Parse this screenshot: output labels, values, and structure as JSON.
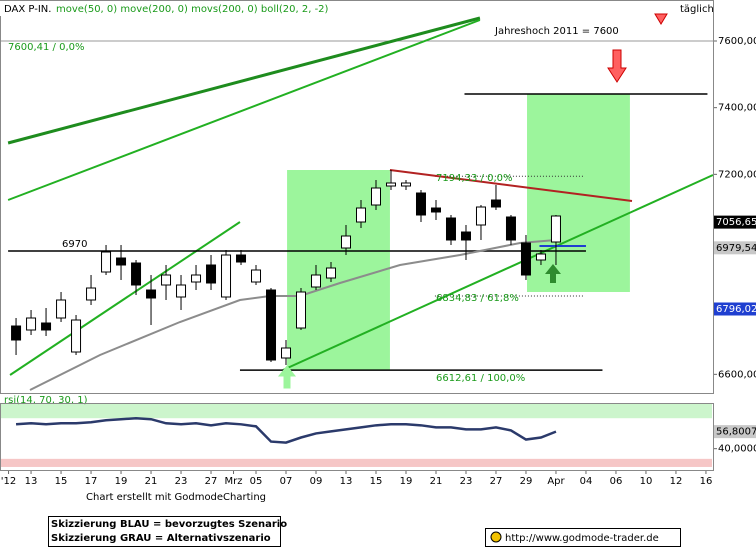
{
  "header": {
    "symbol": "DAX P-IN.",
    "indicators": "move(50, 0) move(200, 0) movs(200, 0) boll(20, 2, -2)",
    "period": "täglich"
  },
  "chart_data": [
    {
      "type": "candlestick",
      "xlim": [
        -1.07,
        46.47
      ],
      "ylim": [
        6544,
        7717
      ],
      "yticks": [
        {
          "value": 7600,
          "label": "7600,00"
        },
        {
          "value": 7400,
          "label": "7400,00"
        },
        {
          "value": 7200,
          "label": "7200,00"
        },
        {
          "value": 6600,
          "label": "6600,00"
        }
      ],
      "up_color": "#ffffff",
      "down_color": "#000000",
      "open": [
        6745,
        6733,
        6754,
        6769,
        6667,
        6823,
        6907,
        6949,
        6934,
        6853,
        6868,
        6832,
        6877,
        6928,
        6832,
        6958,
        6877,
        6853,
        6649,
        6739,
        6862,
        6889,
        6979,
        7057,
        7108,
        7165,
        7165,
        7144,
        7099,
        7069,
        7027,
        7048,
        7123,
        7072,
        6994,
        6943,
        6997
      ],
      "high": [
        6769,
        6793,
        6799,
        6847,
        6778,
        6898,
        6988,
        6988,
        6943,
        6898,
        6928,
        6898,
        6928,
        6958,
        6973,
        6973,
        6928,
        6859,
        6703,
        6859,
        6928,
        6937,
        7048,
        7123,
        7183,
        7213,
        7183,
        7153,
        7123,
        7078,
        7048,
        7108,
        7168,
        7078,
        7018,
        6973,
        7078
      ],
      "low": [
        6658,
        6718,
        6715,
        6757,
        6658,
        6808,
        6898,
        6883,
        6838,
        6748,
        6823,
        6793,
        6853,
        6853,
        6823,
        6928,
        6868,
        6637,
        6628,
        6733,
        6853,
        6877,
        6958,
        7039,
        7093,
        7153,
        7153,
        7057,
        7063,
        6988,
        6943,
        7003,
        7093,
        6988,
        6883,
        6928,
        6928
      ],
      "close": [
        6703,
        6769,
        6733,
        6823,
        6763,
        6859,
        6967,
        6928,
        6868,
        6829,
        6898,
        6868,
        6898,
        6874,
        6958,
        6937,
        6913,
        6643,
        6679,
        6847,
        6898,
        6919,
        7015,
        7099,
        7159,
        7174,
        7174,
        7078,
        7087,
        7003,
        7003,
        7102,
        7102,
        7003,
        6898,
        6961,
        7075
      ],
      "zones": [
        {
          "color": "#9cf59c",
          "x": [
            18.07,
            24.93
          ],
          "y": [
            6613,
            7213
          ]
        },
        {
          "color": "#9cf59c",
          "x": [
            34.07,
            40.93
          ],
          "y": [
            6847,
            7441
          ]
        }
      ],
      "lines": [
        {
          "color": "#9a9a9a",
          "width": 1,
          "points": [
            [
              -1.07,
              7600
            ],
            [
              46.47,
              7600
            ]
          ]
        },
        {
          "color": "#1e8c1e",
          "width": 3,
          "points": [
            [
              -0.53,
              7294
            ],
            [
              30.93,
              7669
            ]
          ]
        },
        {
          "color": "#22b022",
          "width": 2,
          "points": [
            [
              -0.53,
              7123
            ],
            [
              30.93,
              7663
            ]
          ]
        },
        {
          "color": "#22b022",
          "width": 2,
          "points": [
            [
              -0.4,
              6598
            ],
            [
              14.93,
              7057
            ]
          ]
        },
        {
          "color": "#22b022",
          "width": 2,
          "points": [
            [
              17.8,
              6613
            ],
            [
              46.47,
              7198
            ]
          ]
        },
        {
          "color": "#000000",
          "width": 1.5,
          "points": [
            [
              -0.53,
              6970
            ],
            [
              38,
              6970
            ]
          ]
        },
        {
          "color": "#000000",
          "width": 1.5,
          "points": [
            [
              29.9,
              7441
            ],
            [
              46.1,
              7441
            ]
          ]
        },
        {
          "color": "#000000",
          "width": 1.5,
          "points": [
            [
              14.93,
              6612.61
            ],
            [
              39.1,
              6612.61
            ]
          ]
        },
        {
          "color": "#b22222",
          "width": 2,
          "points": [
            [
              24.93,
              7213
            ],
            [
              41.07,
              7120
            ]
          ]
        },
        {
          "color": "#1f3fd0",
          "width": 2,
          "points": [
            [
              34.9,
              6985
            ],
            [
              38,
              6985
            ]
          ]
        },
        {
          "color": "#8c8c8c",
          "width": 2,
          "points": [
            [
              0.93,
              6553
            ],
            [
              5.6,
              6658
            ],
            [
              10.93,
              6757
            ],
            [
              14.93,
              6823
            ],
            [
              16.93,
              6835
            ],
            [
              18.93,
              6835
            ],
            [
              21.6,
              6874
            ],
            [
              25.6,
              6928
            ],
            [
              29.6,
              6958
            ],
            [
              33.6,
              6994
            ],
            [
              36,
              7003
            ]
          ]
        }
      ],
      "dotted_levels": [
        {
          "value": 7194.33,
          "x": [
            27.93,
            37.93
          ]
        },
        {
          "value": 6834.83,
          "x": [
            27.93,
            37.93
          ]
        }
      ],
      "price_tags": [
        {
          "value": 7056.65,
          "label": "7056,65",
          "color": "#000000"
        },
        {
          "value": 6979.54,
          "label": "6979,54",
          "color": "#c8c8c8"
        },
        {
          "value": 6796.02,
          "label": "6796,02",
          "color": "#1f3fd0"
        }
      ],
      "annotations": [
        "Jahreshoch 2011 = 7600",
        "7600,41 / 0,0%",
        "7194,33 / 0,0%",
        "6834,83 / 61,8%",
        "6612,61 / 100,0%",
        "6970"
      ]
    },
    {
      "type": "line",
      "xlim": [
        -1.07,
        46.47
      ],
      "ylim": [
        19,
        84
      ],
      "yticks": [
        {
          "value": 40,
          "label": "40,0000"
        }
      ],
      "bands": [
        {
          "color": "#ccf5cc",
          "range": [
            70,
            84
          ]
        },
        {
          "color": "#f6c6c6",
          "range": [
            22,
            30
          ]
        }
      ],
      "series": [
        {
          "name": "rsi(14, 70, 30, 1)",
          "color": "#2b3a6b",
          "values": [
            64,
            65,
            64,
            65,
            65,
            66,
            68,
            69,
            70,
            69,
            65,
            64,
            65,
            63,
            65,
            64,
            62,
            47,
            46,
            51,
            55,
            57,
            59,
            61,
            63,
            64,
            64,
            63,
            61,
            61,
            59,
            59,
            61,
            58,
            49,
            51,
            56.8
          ]
        }
      ],
      "price_tags": [
        {
          "value": 56.8007,
          "label": "56,8007",
          "color": "#c8c8c8"
        }
      ],
      "xticks": [
        {
          "value": -0.5,
          "label": "'12"
        },
        {
          "value": 1,
          "label": "13"
        },
        {
          "value": 3,
          "label": "15"
        },
        {
          "value": 5,
          "label": "17"
        },
        {
          "value": 7,
          "label": "19"
        },
        {
          "value": 9,
          "label": "21"
        },
        {
          "value": 11,
          "label": "23"
        },
        {
          "value": 13,
          "label": "27"
        },
        {
          "value": 14.5,
          "label": "Mrz"
        },
        {
          "value": 16,
          "label": "05"
        },
        {
          "value": 18,
          "label": "07"
        },
        {
          "value": 20,
          "label": "09"
        },
        {
          "value": 22,
          "label": "13"
        },
        {
          "value": 24,
          "label": "15"
        },
        {
          "value": 26,
          "label": "19"
        },
        {
          "value": 28,
          "label": "21"
        },
        {
          "value": 30,
          "label": "23"
        },
        {
          "value": 32,
          "label": "27"
        },
        {
          "value": 34,
          "label": "29"
        },
        {
          "value": 36,
          "label": "Apr"
        },
        {
          "value": 38,
          "label": "04"
        },
        {
          "value": 40,
          "label": "06"
        },
        {
          "value": 42,
          "label": "10"
        },
        {
          "value": 44,
          "label": "12"
        },
        {
          "value": 46,
          "label": "16"
        }
      ]
    }
  ],
  "footer": {
    "credit": "Chart erstellt mit GodmodeCharting",
    "legend": [
      "Skizzierung BLAU = bevorzugtes Szenario",
      "Skizzierung GRAU = Alternativszenario"
    ],
    "url": "http://www.godmode-trader.de"
  }
}
